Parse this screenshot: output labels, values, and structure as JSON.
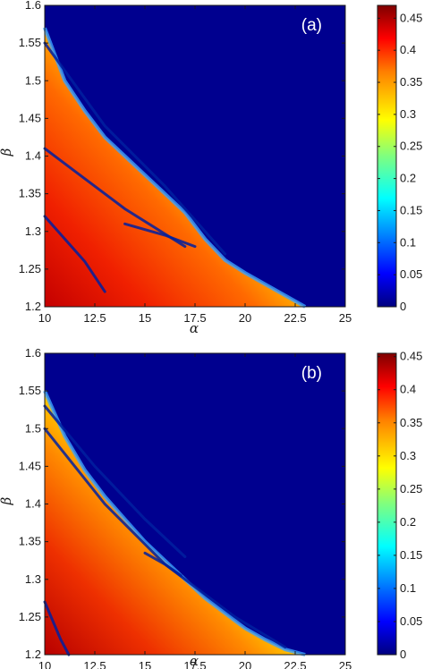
{
  "chart_data": [
    {
      "type": "heatmap",
      "panel_label": "(a)",
      "xlabel": "α",
      "ylabel": "β",
      "xlim": [
        10,
        25
      ],
      "ylim": [
        1.2,
        1.6
      ],
      "x_ticks": [
        "10",
        "12.5",
        "15",
        "17.5",
        "20",
        "22.5",
        "25"
      ],
      "y_ticks": [
        "1.2",
        "1.25",
        "1.3",
        "1.35",
        "1.4",
        "1.45",
        "1.5",
        "1.55",
        "1.6"
      ],
      "colorbar": {
        "range": [
          0,
          0.47
        ],
        "ticks": [
          "0",
          "0.05",
          "0.1",
          "0.15",
          "0.2",
          "0.25",
          "0.3",
          "0.35",
          "0.4",
          "0.45"
        ],
        "colormap": "jet"
      },
      "boundary": [
        [
          10,
          1.57
        ],
        [
          11,
          1.5
        ],
        [
          12,
          1.46
        ],
        [
          13,
          1.425
        ],
        [
          14,
          1.4
        ],
        [
          15,
          1.375
        ],
        [
          16,
          1.35
        ],
        [
          17,
          1.325
        ],
        [
          18,
          1.29
        ],
        [
          19,
          1.262
        ],
        [
          20,
          1.245
        ],
        [
          21,
          1.23
        ],
        [
          22,
          1.215
        ],
        [
          23,
          1.2
        ]
      ],
      "max_value_region": "lower-left",
      "background_value": 0
    },
    {
      "type": "heatmap",
      "panel_label": "(b)",
      "xlabel": "α",
      "ylabel": "β",
      "xlim": [
        10,
        25
      ],
      "ylim": [
        1.2,
        1.6
      ],
      "x_ticks": [
        "10",
        "12.5",
        "15",
        "17.5",
        "20",
        "22.5",
        "25"
      ],
      "y_ticks": [
        "1.2",
        "1.25",
        "1.3",
        "1.35",
        "1.4",
        "1.45",
        "1.5",
        "1.55",
        "1.6"
      ],
      "colorbar": {
        "range": [
          0,
          0.455
        ],
        "ticks": [
          "0",
          "0.05",
          "0.1",
          "0.15",
          "0.2",
          "0.25",
          "0.3",
          "0.35",
          "0.4",
          "0.45"
        ],
        "colormap": "jet"
      },
      "boundary": [
        [
          10,
          1.55
        ],
        [
          11,
          1.49
        ],
        [
          12,
          1.445
        ],
        [
          13,
          1.41
        ],
        [
          14,
          1.38
        ],
        [
          15,
          1.35
        ],
        [
          16,
          1.325
        ],
        [
          17,
          1.3
        ],
        [
          18,
          1.275
        ],
        [
          19,
          1.255
        ],
        [
          20,
          1.235
        ],
        [
          21,
          1.22
        ],
        [
          22,
          1.207
        ],
        [
          23,
          1.2
        ]
      ],
      "max_value_region": "lower-left",
      "background_value": 0
    }
  ],
  "colors": {
    "background_blue": "#00008f",
    "jet_stops": [
      "#00007f",
      "#0000ff",
      "#007fff",
      "#00ffff",
      "#7fff7f",
      "#ffff00",
      "#ff7f00",
      "#ff0000",
      "#7f0000"
    ]
  }
}
